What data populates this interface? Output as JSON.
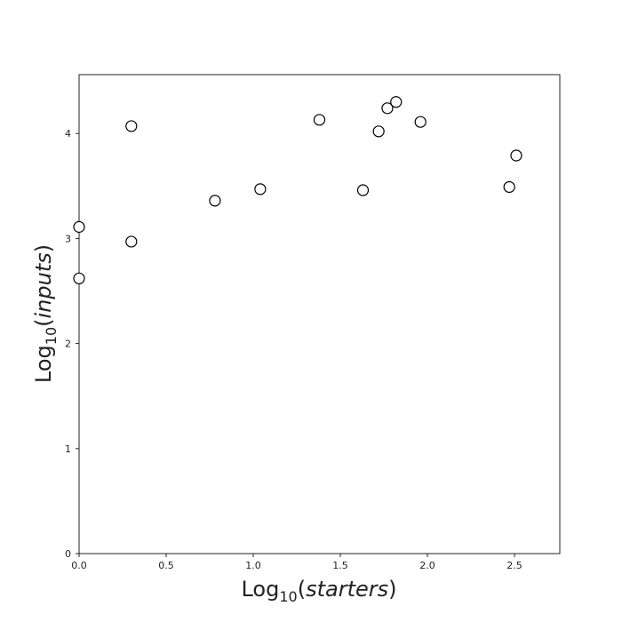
{
  "chart_data": {
    "type": "scatter",
    "xlabel": {
      "prefix": "Log",
      "subscript": "10",
      "open": "(",
      "italic": "starters",
      "close": ")"
    },
    "ylabel": {
      "prefix": "Log",
      "subscript": "10",
      "open": "(",
      "italic": "inputs",
      "close": ")"
    },
    "xlim": [
      0,
      2.76
    ],
    "ylim": [
      0,
      4.56
    ],
    "xticks": [
      0.0,
      0.5,
      1.0,
      1.5,
      2.0,
      2.5
    ],
    "xtick_labels": [
      "0.0",
      "0.5",
      "1.0",
      "1.5",
      "2.0",
      "2.5"
    ],
    "yticks": [
      0,
      1,
      2,
      3,
      4
    ],
    "ytick_labels": [
      "0",
      "1",
      "2",
      "3",
      "4"
    ],
    "grid": false,
    "marker": {
      "shape": "open-circle",
      "edge_color": "#000000",
      "fill_color": "#ffffff"
    },
    "points": [
      {
        "x": 0.0,
        "y": 3.11
      },
      {
        "x": 0.0,
        "y": 2.62
      },
      {
        "x": 0.3,
        "y": 4.07
      },
      {
        "x": 0.3,
        "y": 2.97
      },
      {
        "x": 0.78,
        "y": 3.36
      },
      {
        "x": 1.04,
        "y": 3.47
      },
      {
        "x": 1.38,
        "y": 4.13
      },
      {
        "x": 1.63,
        "y": 3.46
      },
      {
        "x": 1.72,
        "y": 4.02
      },
      {
        "x": 1.77,
        "y": 4.24
      },
      {
        "x": 1.82,
        "y": 4.3
      },
      {
        "x": 1.96,
        "y": 4.11
      },
      {
        "x": 2.47,
        "y": 3.49
      },
      {
        "x": 2.51,
        "y": 3.79
      }
    ]
  }
}
